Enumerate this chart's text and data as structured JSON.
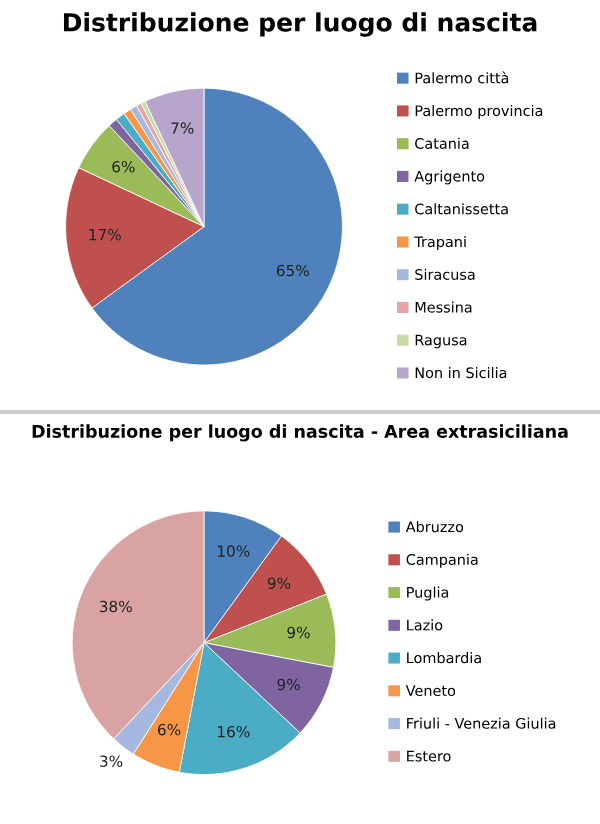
{
  "chart_data": [
    {
      "type": "pie",
      "title": "Distribuzione per luogo di nascita",
      "legend": "right",
      "categories": [
        "Palermo città",
        "Palermo provincia",
        "Catania",
        "Agrigento",
        "Caltanissetta",
        "Trapani",
        "Siracusa",
        "Messina",
        "Ragusa",
        "Non in Sicilia"
      ],
      "values": [
        65,
        17,
        6,
        1.1,
        1.1,
        0.9,
        0.8,
        0.6,
        0.5,
        7
      ],
      "value_labels": [
        "65%",
        "17%",
        "6%",
        null,
        null,
        null,
        null,
        null,
        null,
        "7%"
      ],
      "colors": [
        "#4f81bd",
        "#c0504d",
        "#9bbb59",
        "#8064a2",
        "#4bacc6",
        "#f79646",
        "#a5b8e0",
        "#e6a5a4",
        "#c6dca4",
        "#b7a5cc"
      ]
    },
    {
      "type": "pie",
      "title": "Distribuzione per luogo di nascita - Area extrasiciliana",
      "legend": "right",
      "categories": [
        "Abruzzo",
        "Campania",
        "Puglia",
        "Lazio",
        "Lombardia",
        "Veneto",
        "Friuli - Venezia Giulia",
        "Estero"
      ],
      "values": [
        10,
        9,
        9,
        9,
        16,
        6,
        3,
        38
      ],
      "value_labels": [
        "10%",
        "9%",
        "9%",
        "9%",
        "16%",
        "6%",
        "3%",
        "38%"
      ],
      "colors": [
        "#4f81bd",
        "#c0504d",
        "#9bbb59",
        "#8064a2",
        "#4bacc6",
        "#f79646",
        "#a5b8e0",
        "#d9a3a3"
      ]
    }
  ]
}
